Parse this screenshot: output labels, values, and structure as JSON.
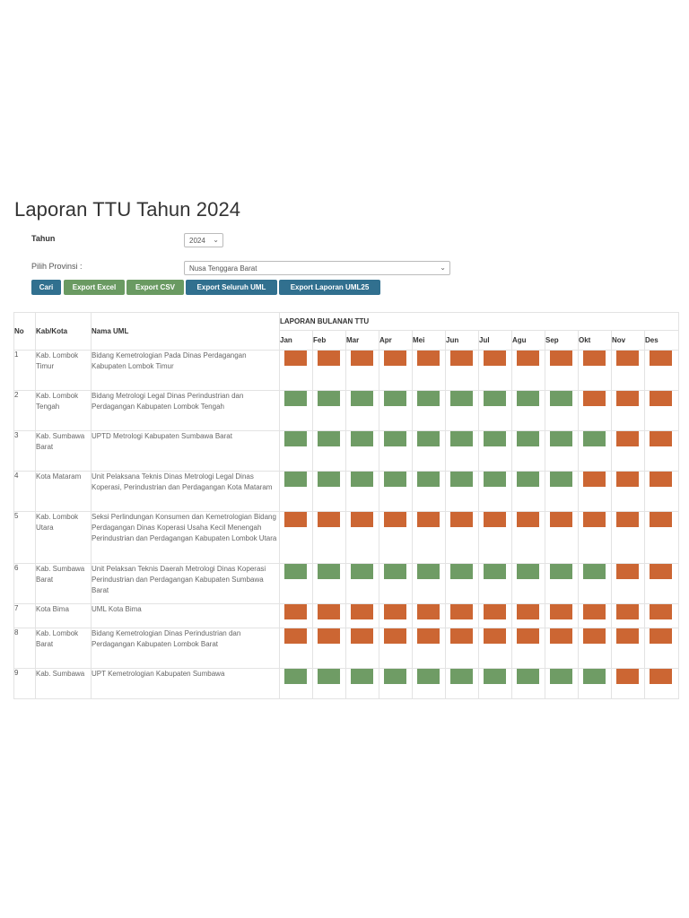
{
  "page": {
    "title": "Laporan TTU Tahun 2024"
  },
  "filters": {
    "tahun_label": "Tahun",
    "tahun_value": "2024",
    "provinsi_label": "Pilih Provinsi :",
    "provinsi_value": "Nusa Tenggara Barat"
  },
  "buttons": {
    "cari": "Cari",
    "export_excel": "Export Excel",
    "export_csv": "Export CSV",
    "export_seluruh": "Export Seluruh UML",
    "export_uml25": "Export Laporan UML25"
  },
  "table": {
    "col_no": "No",
    "col_kab": "Kab/Kota",
    "col_uml": "Nama UML",
    "group_header": "LAPORAN BULANAN TTU",
    "months": [
      "Jan",
      "Feb",
      "Mar",
      "Apr",
      "Mei",
      "Jun",
      "Jul",
      "Agu",
      "Sep",
      "Okt",
      "Nov",
      "Des"
    ],
    "rows": [
      {
        "no": "1",
        "kab": "Kab. Lombok Timur",
        "uml": "Bidang Kemetrologian Pada Dinas Perdagangan Kabupaten Lombok Timur",
        "status": [
          "o",
          "o",
          "o",
          "o",
          "o",
          "o",
          "o",
          "o",
          "o",
          "o",
          "o",
          "o"
        ]
      },
      {
        "no": "2",
        "kab": "Kab. Lombok Tengah",
        "uml": "Bidang Metrologi Legal Dinas Perindustrian dan Perdagangan Kabupaten Lombok Tengah",
        "status": [
          "g",
          "g",
          "g",
          "g",
          "g",
          "g",
          "g",
          "g",
          "g",
          "o",
          "o",
          "o"
        ]
      },
      {
        "no": "3",
        "kab": "Kab. Sumbawa Barat",
        "uml": "UPTD Metrologi Kabupaten Sumbawa Barat",
        "status": [
          "g",
          "g",
          "g",
          "g",
          "g",
          "g",
          "g",
          "g",
          "g",
          "g",
          "o",
          "o"
        ]
      },
      {
        "no": "4",
        "kab": "Kota Mataram",
        "uml": "Unit Pelaksana Teknis Dinas Metrologi Legal Dinas Koperasi, Perindustrian dan Perdagangan Kota Mataram",
        "status": [
          "g",
          "g",
          "g",
          "g",
          "g",
          "g",
          "g",
          "g",
          "g",
          "o",
          "o",
          "o"
        ]
      },
      {
        "no": "5",
        "kab": "Kab. Lombok Utara",
        "uml": "Seksi Perlindungan Konsumen dan Kemetrologian Bidang Perdagangan Dinas Koperasi Usaha Kecil Menengah Perindustrian dan Perdagangan Kabupaten Lombok Utara",
        "status": [
          "o",
          "o",
          "o",
          "o",
          "o",
          "o",
          "o",
          "o",
          "o",
          "o",
          "o",
          "o"
        ]
      },
      {
        "no": "6",
        "kab": "Kab. Sumbawa Barat",
        "uml": "Unit Pelaksan Teknis Daerah Metrologi Dinas Koperasi Perindustrian dan Perdagangan Kabupaten Sumbawa Barat",
        "status": [
          "g",
          "g",
          "g",
          "g",
          "g",
          "g",
          "g",
          "g",
          "g",
          "g",
          "o",
          "o"
        ]
      },
      {
        "no": "7",
        "kab": "Kota Bima",
        "uml": "UML Kota Bima",
        "status": [
          "o",
          "o",
          "o",
          "o",
          "o",
          "o",
          "o",
          "o",
          "o",
          "o",
          "o",
          "o"
        ]
      },
      {
        "no": "8",
        "kab": "Kab. Lombok Barat",
        "uml": "Bidang Kemetrologian Dinas Perindustrian dan Perdagangan Kabupaten Lombok Barat",
        "status": [
          "o",
          "o",
          "o",
          "o",
          "o",
          "o",
          "o",
          "o",
          "o",
          "o",
          "o",
          "o"
        ]
      },
      {
        "no": "9",
        "kab": "Kab. Sumbawa",
        "uml": "UPT Kemetrologian Kabupaten Sumbawa",
        "status": [
          "g",
          "g",
          "g",
          "g",
          "g",
          "g",
          "g",
          "g",
          "g",
          "g",
          "o",
          "o"
        ]
      }
    ]
  },
  "colors": {
    "green": "#6f9c65",
    "orange": "#cc6633",
    "primary_button": "#31708f",
    "success_button": "#6a9a62"
  }
}
